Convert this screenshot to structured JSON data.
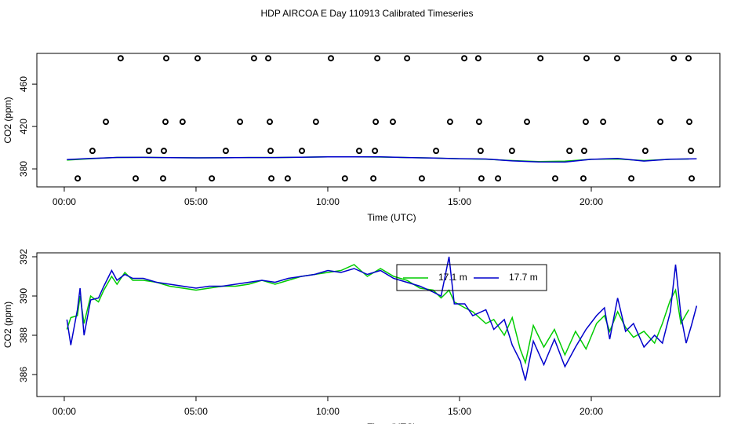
{
  "chart_data": [
    {
      "type": "scatter",
      "title": "HDP AIRCOA E  Day 110913  Calibrated Timeseries",
      "x_label": "Time (UTC)",
      "y_label": "CO2 (ppm)",
      "xlim": [
        -1.04,
        24.88
      ],
      "ylim": [
        363,
        489
      ],
      "xticks": [
        {
          "value": 0,
          "label": "00:00"
        },
        {
          "value": 5,
          "label": "05:00"
        },
        {
          "value": 10,
          "label": "10:00"
        },
        {
          "value": 15,
          "label": "15:00"
        },
        {
          "value": 20,
          "label": "20:00"
        }
      ],
      "yticks": [
        380,
        420,
        460
      ],
      "marker_color": "#000000",
      "x": [
        2.14,
        3.87,
        5.06,
        7.2,
        7.74,
        10.12,
        11.88,
        13.01,
        15.18,
        15.71,
        18.07,
        19.82,
        20.98,
        23.13,
        23.69,
        1.58,
        3.84,
        4.49,
        6.67,
        7.8,
        9.55,
        11.82,
        12.47,
        14.64,
        15.74,
        17.56,
        19.79,
        20.45,
        22.62,
        23.72,
        1.07,
        3.21,
        3.78,
        6.13,
        7.83,
        9.02,
        11.19,
        11.79,
        14.11,
        15.8,
        16.99,
        19.17,
        19.73,
        22.05,
        23.78,
        0.51,
        2.71,
        3.75,
        5.6,
        7.86,
        8.48,
        10.65,
        11.73,
        13.57,
        15.83,
        16.46,
        18.63,
        19.7,
        21.52,
        23.81
      ],
      "values": [
        484.4,
        484.4,
        484.4,
        484.4,
        484.4,
        484.4,
        484.4,
        484.4,
        484.4,
        484.4,
        484.4,
        484.4,
        484.4,
        484.4,
        484.4,
        424.4,
        424.4,
        424.4,
        424.4,
        424.4,
        424.4,
        424.4,
        424.4,
        424.4,
        424.4,
        424.4,
        424.4,
        424.4,
        424.4,
        424.4,
        397,
        397,
        397,
        397,
        397,
        397,
        397,
        397,
        397,
        397,
        397,
        397,
        397,
        397,
        397,
        371,
        371,
        371,
        371,
        371,
        371,
        371,
        371,
        371,
        371,
        371,
        371,
        371,
        371,
        371
      ],
      "series": [
        {
          "color": "#00cc00",
          "x": [
            0.1,
            1,
            2,
            3,
            4,
            5,
            6,
            7,
            8,
            9,
            10,
            11,
            12,
            13,
            14,
            15,
            16,
            17,
            18,
            19,
            20,
            21,
            22,
            23,
            23.7
          ],
          "values": [
            388.3,
            389.6,
            390.8,
            390.9,
            390.6,
            390.4,
            390.5,
            390.7,
            390.7,
            391.0,
            391.3,
            391.3,
            391.2,
            390.7,
            390.2,
            389.5,
            389.1,
            387.8,
            386.9,
            387.2,
            389.0,
            389.3,
            387.8,
            389.0,
            389.3
          ]
        },
        {
          "color": "#0000cc",
          "x": [
            0.1,
            1,
            2,
            3,
            4,
            5,
            6,
            7,
            8,
            9,
            10,
            11,
            12,
            13,
            14,
            15,
            16,
            17,
            18,
            19,
            20,
            21,
            22,
            23,
            24
          ],
          "values": [
            388.8,
            389.8,
            390.8,
            390.9,
            390.6,
            390.4,
            390.5,
            390.7,
            390.7,
            391.0,
            391.3,
            391.4,
            391.3,
            390.7,
            390.2,
            389.6,
            389.3,
            387.5,
            386.5,
            386.4,
            389.0,
            389.9,
            387.4,
            389.2,
            389.5
          ]
        }
      ]
    },
    {
      "type": "line",
      "x_label": "Time (UTC)",
      "y_label": "CO2 (ppm)",
      "xlim": [
        -1.04,
        24.88
      ],
      "ylim": [
        384.88,
        392.2
      ],
      "xticks": [
        {
          "value": 0,
          "label": "00:00"
        },
        {
          "value": 5,
          "label": "05:00"
        },
        {
          "value": 10,
          "label": "10:00"
        },
        {
          "value": 15,
          "label": "15:00"
        },
        {
          "value": 20,
          "label": "20:00"
        }
      ],
      "yticks": [
        386,
        388,
        390,
        392
      ],
      "legend": "top",
      "series": [
        {
          "name": "17.1 m",
          "color": "#00cc00",
          "x": [
            0.1,
            0.25,
            0.5,
            0.6,
            0.75,
            1.0,
            1.3,
            1.5,
            1.8,
            2.0,
            2.3,
            2.6,
            3,
            3.5,
            4,
            4.5,
            5,
            5.5,
            6,
            6.5,
            7,
            7.5,
            8,
            8.5,
            9,
            9.5,
            10,
            10.5,
            11,
            11.5,
            12,
            12.5,
            13,
            13.5,
            14,
            14.3,
            14.6,
            14.8,
            15.2,
            15.5,
            16,
            16.3,
            16.7,
            17,
            17.3,
            17.5,
            17.8,
            18.2,
            18.6,
            19,
            19.4,
            19.8,
            20.2,
            20.5,
            20.7,
            21,
            21.3,
            21.6,
            22,
            22.4,
            22.7,
            23,
            23.2,
            23.4,
            23.7
          ],
          "values": [
            388.3,
            388.9,
            389.0,
            390.0,
            388.6,
            390.0,
            389.7,
            390.3,
            391.0,
            390.6,
            391.2,
            390.8,
            390.8,
            390.7,
            390.5,
            390.4,
            390.3,
            390.4,
            390.5,
            390.5,
            390.6,
            390.8,
            390.6,
            390.8,
            391.0,
            391.1,
            391.2,
            391.3,
            391.6,
            391.0,
            391.4,
            391.0,
            390.8,
            390.4,
            390.3,
            389.9,
            390.3,
            389.7,
            389.4,
            389.2,
            388.6,
            388.8,
            388.0,
            388.9,
            387.3,
            386.6,
            388.5,
            387.4,
            388.3,
            387.0,
            388.2,
            387.3,
            388.6,
            389.0,
            388.2,
            389.2,
            388.4,
            387.9,
            388.2,
            387.6,
            388.6,
            389.8,
            390.3,
            388.6,
            389.3
          ]
        },
        {
          "name": "17.7 m",
          "color": "#0000cc",
          "x": [
            0.1,
            0.25,
            0.5,
            0.6,
            0.75,
            1.0,
            1.3,
            1.5,
            1.8,
            2.0,
            2.3,
            2.6,
            3,
            3.5,
            4,
            4.5,
            5,
            5.5,
            6,
            6.5,
            7,
            7.5,
            8,
            8.5,
            9,
            9.5,
            10,
            10.5,
            11,
            11.5,
            12,
            12.5,
            13,
            13.5,
            14,
            14.3,
            14.6,
            14.8,
            15.2,
            15.5,
            16,
            16.3,
            16.7,
            17,
            17.3,
            17.5,
            17.8,
            18.2,
            18.6,
            19,
            19.4,
            19.8,
            20.2,
            20.5,
            20.7,
            21,
            21.3,
            21.6,
            22,
            22.4,
            22.7,
            23,
            23.2,
            23.4,
            23.6,
            23.8,
            24.0
          ],
          "values": [
            388.8,
            387.5,
            389.3,
            390.4,
            388.0,
            389.8,
            389.9,
            390.5,
            391.3,
            390.8,
            391.1,
            390.9,
            390.9,
            390.7,
            390.6,
            390.5,
            390.4,
            390.5,
            390.5,
            390.6,
            390.7,
            390.8,
            390.7,
            390.9,
            391.0,
            391.1,
            391.3,
            391.2,
            391.4,
            391.1,
            391.3,
            390.9,
            390.7,
            390.5,
            390.2,
            390.0,
            392.0,
            389.6,
            389.6,
            389.0,
            389.3,
            388.3,
            388.8,
            387.5,
            386.7,
            385.7,
            387.7,
            386.5,
            387.8,
            386.4,
            387.4,
            388.3,
            389.0,
            389.4,
            387.8,
            389.9,
            388.2,
            388.6,
            387.4,
            388.0,
            387.6,
            389.2,
            391.6,
            389.0,
            387.6,
            388.5,
            389.5
          ]
        }
      ]
    }
  ]
}
